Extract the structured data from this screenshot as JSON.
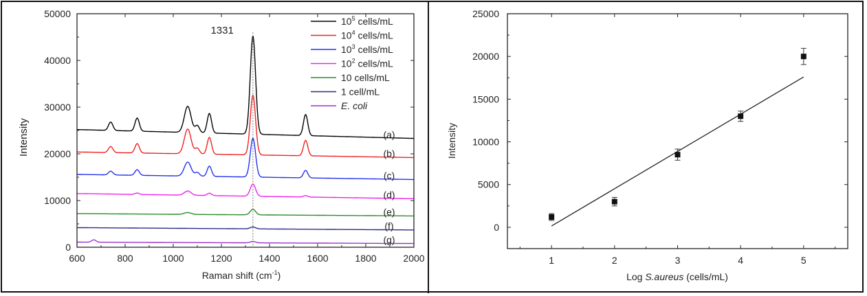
{
  "chart_data": [
    {
      "type": "line",
      "xlabel_main": "Raman shift (cm",
      "xlabel_sup": "-1",
      "xlabel_end": ")",
      "ylabel": "Intensity",
      "xlim": [
        600,
        2000
      ],
      "ylim": [
        0,
        50000
      ],
      "xticks": [
        600,
        800,
        1000,
        1200,
        1400,
        1600,
        1800,
        2000
      ],
      "yticks": [
        0,
        10000,
        20000,
        30000,
        40000,
        50000
      ],
      "xtick_labels": [
        "600",
        "800",
        "1000",
        "1200",
        "1400",
        "1600",
        "1800",
        "2000"
      ],
      "ytick_labels": [
        "0",
        "10000",
        "20000",
        "30000",
        "40000",
        "50000"
      ],
      "annotation": {
        "text": "1331",
        "x": 1331
      },
      "grid": false,
      "legend_position": "top-right",
      "series": [
        {
          "legend_base": "10",
          "legend_sup": "5",
          "legend_suffix": " cells/mL",
          "italic": false,
          "label": "(a)",
          "color": "#000000",
          "baseline_start": 25200,
          "baseline_end": 23300,
          "peaks": [
            [
              740,
              1800
            ],
            [
              850,
              2800
            ],
            [
              1060,
              5600
            ],
            [
              1100,
              1500
            ],
            [
              1150,
              4200
            ],
            [
              1331,
              21000
            ],
            [
              1550,
              4500
            ]
          ]
        },
        {
          "legend_base": "10",
          "legend_sup": "4",
          "legend_suffix": " cells/mL",
          "italic": false,
          "label": "(b)",
          "color": "#ee2222",
          "baseline_start": 20400,
          "baseline_end": 19200,
          "peaks": [
            [
              740,
              1300
            ],
            [
              850,
              2000
            ],
            [
              1060,
              5300
            ],
            [
              1100,
              1200
            ],
            [
              1150,
              3600
            ],
            [
              1331,
              12800
            ],
            [
              1550,
              3300
            ]
          ]
        },
        {
          "legend_base": "10",
          "legend_sup": "3",
          "legend_suffix": " cells/mL",
          "italic": false,
          "label": "(c)",
          "color": "#2233ee",
          "baseline_start": 15600,
          "baseline_end": 14500,
          "peaks": [
            [
              740,
              800
            ],
            [
              850,
              1200
            ],
            [
              1060,
              3000
            ],
            [
              1100,
              800
            ],
            [
              1150,
              2200
            ],
            [
              1331,
              8300
            ],
            [
              1550,
              1600
            ]
          ]
        },
        {
          "legend_base": "10",
          "legend_sup": "2",
          "legend_suffix": " cells/mL",
          "italic": false,
          "label": "(d)",
          "color": "#ee22ee",
          "baseline_start": 11500,
          "baseline_end": 10400,
          "peaks": [
            [
              850,
              300
            ],
            [
              1060,
              900
            ],
            [
              1150,
              500
            ],
            [
              1331,
              2600
            ],
            [
              1550,
              300
            ]
          ]
        },
        {
          "legend_base": "10",
          "legend_sup": "",
          "legend_suffix": " cells/mL",
          "italic": false,
          "label": "(e)",
          "color": "#2a8a2a",
          "baseline_start": 7200,
          "baseline_end": 6700,
          "peaks": [
            [
              1060,
              400
            ],
            [
              1331,
              1200
            ]
          ]
        },
        {
          "legend_base": "1 cell/mL",
          "legend_sup": "",
          "legend_suffix": "",
          "italic": false,
          "label": "(f)",
          "color": "#2a2a8a",
          "baseline_start": 4200,
          "baseline_end": 3700,
          "peaks": [
            [
              1331,
              400
            ]
          ]
        },
        {
          "legend_base": "E. coli",
          "legend_sup": "",
          "legend_suffix": "",
          "italic": true,
          "label": "(g)",
          "color": "#9933cc",
          "baseline_start": 1100,
          "baseline_end": 800,
          "peaks": [
            [
              670,
              500
            ],
            [
              1331,
              300
            ]
          ]
        }
      ]
    },
    {
      "type": "scatter",
      "xlabel_prefix": "Log ",
      "xlabel_italic": "S.aureus",
      "xlabel_suffix": " (cells/mL)",
      "ylabel": "Intensity",
      "xlim": [
        0.3,
        5.7
      ],
      "ylim": [
        -2500,
        25000
      ],
      "xticks": [
        1,
        2,
        3,
        4,
        5
      ],
      "yticks": [
        0,
        5000,
        10000,
        15000,
        20000,
        25000
      ],
      "xtick_labels": [
        "1",
        "2",
        "3",
        "4",
        "5"
      ],
      "ytick_labels": [
        "0",
        "5000",
        "10000",
        "15000",
        "20000",
        "25000"
      ],
      "points": [
        {
          "x": 1,
          "y": 1200,
          "err": 400
        },
        {
          "x": 2,
          "y": 3000,
          "err": 500
        },
        {
          "x": 3,
          "y": 8500,
          "err": 650
        },
        {
          "x": 4,
          "y": 13000,
          "err": 600
        },
        {
          "x": 5,
          "y": 20000,
          "err": 950
        }
      ],
      "fit_line": {
        "x": [
          1,
          5
        ],
        "y": [
          150,
          17600
        ]
      },
      "grid": false
    }
  ]
}
